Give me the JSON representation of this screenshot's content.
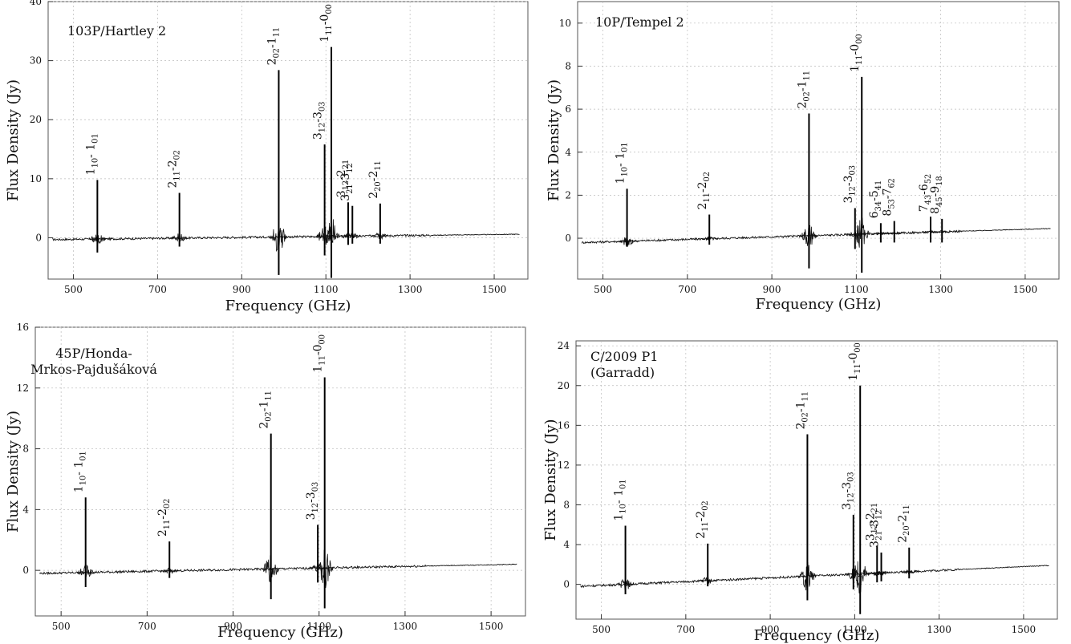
{
  "chart_data": [
    {
      "type": "line",
      "comet": "103P/Hartley 2",
      "xlabel": "Frequency (GHz)",
      "ylabel": "Flux Density (Jy)",
      "xlim": [
        440,
        1580
      ],
      "ylim": [
        -7,
        40
      ],
      "xticks": [
        500,
        700,
        900,
        1100,
        1300,
        1500
      ],
      "yticks": [
        0,
        10,
        20,
        30,
        40
      ],
      "grid": true,
      "baseline": [
        [
          450,
          -0.3
        ],
        [
          1560,
          0.6
        ]
      ],
      "lines": [
        {
          "x": 557,
          "peak": 9.8,
          "trough": -2.5,
          "label_main": "1",
          "label_sub1": "10",
          "label_mid": "- 1",
          "label_sub2": "01"
        },
        {
          "x": 752,
          "peak": 7.6,
          "trough": -1.5,
          "label_main": "2",
          "label_sub1": "11",
          "label_mid": "-2",
          "label_sub2": "02"
        },
        {
          "x": 988,
          "peak": 28.4,
          "trough": -6.3,
          "label_main": "2",
          "label_sub1": "02",
          "label_mid": "-1",
          "label_sub2": "11"
        },
        {
          "x": 1097,
          "peak": 15.8,
          "trough": -3.0,
          "label_main": "3",
          "label_sub1": "12",
          "label_mid": "-3",
          "label_sub2": "03"
        },
        {
          "x": 1113,
          "peak": 32.3,
          "trough": -6.8,
          "label_main": "1",
          "label_sub1": "11",
          "label_mid": "-0",
          "label_sub2": "00"
        },
        {
          "x": 1153,
          "peak": 6.0,
          "trough": -1.2,
          "label_main": "3",
          "label_sub1": "12",
          "label_mid": "-2",
          "label_sub2": "21"
        },
        {
          "x": 1163,
          "peak": 5.4,
          "trough": -1.0,
          "label_main": "3",
          "label_sub1": "21",
          "label_mid": "-3",
          "label_sub2": "12"
        },
        {
          "x": 1229,
          "peak": 5.8,
          "trough": -1.0,
          "label_main": "2",
          "label_sub1": "20",
          "label_mid": "-2",
          "label_sub2": "11"
        }
      ]
    },
    {
      "type": "line",
      "comet": "10P/Tempel 2",
      "xlabel": "Frequency (GHz)",
      "ylabel": "Flux Density (Jy)",
      "xlim": [
        440,
        1580
      ],
      "ylim": [
        -1.9,
        11
      ],
      "xticks": [
        500,
        700,
        900,
        1100,
        1300,
        1500
      ],
      "yticks": [
        0,
        2,
        4,
        6,
        8,
        10
      ],
      "grid": true,
      "baseline": [
        [
          450,
          -0.2
        ],
        [
          1560,
          0.45
        ]
      ],
      "lines": [
        {
          "x": 557,
          "peak": 2.3,
          "trough": -0.4,
          "label_main": "1",
          "label_sub1": "10",
          "label_mid": "- 1",
          "label_sub2": "01"
        },
        {
          "x": 752,
          "peak": 1.1,
          "trough": -0.3,
          "label_main": "2",
          "label_sub1": "11",
          "label_mid": "-2",
          "label_sub2": "02"
        },
        {
          "x": 988,
          "peak": 5.8,
          "trough": -1.4,
          "label_main": "2",
          "label_sub1": "02",
          "label_mid": "-1",
          "label_sub2": "11"
        },
        {
          "x": 1097,
          "peak": 1.4,
          "trough": -0.5,
          "label_main": "3",
          "label_sub1": "12",
          "label_mid": "-3",
          "label_sub2": "03"
        },
        {
          "x": 1113,
          "peak": 7.5,
          "trough": -1.6,
          "label_main": "1",
          "label_sub1": "11",
          "label_mid": "-0",
          "label_sub2": "00"
        },
        {
          "x": 1158,
          "peak": 0.7,
          "trough": -0.2,
          "label_main": "6",
          "label_sub1": "34",
          "label_mid": "-5",
          "label_sub2": "41"
        },
        {
          "x": 1190,
          "peak": 0.8,
          "trough": -0.2,
          "label_main": "8",
          "label_sub1": "53",
          "label_mid": "-7",
          "label_sub2": "62"
        },
        {
          "x": 1276,
          "peak": 1.0,
          "trough": -0.2,
          "label_main": "7",
          "label_sub1": "43",
          "label_mid": "-6",
          "label_sub2": "52"
        },
        {
          "x": 1303,
          "peak": 0.9,
          "trough": -0.2,
          "label_main": "8",
          "label_sub1": "45",
          "label_mid": "-9",
          "label_sub2": "18"
        }
      ]
    },
    {
      "type": "line",
      "comet": "45P/Honda-Mrkos-Pajdušáková",
      "comet_lines": [
        "45P/Honda-",
        "Mrkos-Pajdušáková"
      ],
      "xlabel": "Frequency (GHz)",
      "ylabel": "Flux Density (Jy)",
      "xlim": [
        440,
        1580
      ],
      "ylim": [
        -3,
        16
      ],
      "xticks": [
        500,
        700,
        900,
        1100,
        1300,
        1500
      ],
      "yticks": [
        0,
        4,
        8,
        12,
        16
      ],
      "grid": true,
      "baseline": [
        [
          450,
          -0.2
        ],
        [
          1560,
          0.4
        ]
      ],
      "lines": [
        {
          "x": 557,
          "peak": 4.8,
          "trough": -1.1,
          "label_main": "1",
          "label_sub1": "10",
          "label_mid": "- 1",
          "label_sub2": "01"
        },
        {
          "x": 752,
          "peak": 1.9,
          "trough": -0.5,
          "label_main": "2",
          "label_sub1": "11",
          "label_mid": "-2",
          "label_sub2": "02"
        },
        {
          "x": 988,
          "peak": 9.0,
          "trough": -1.9,
          "label_main": "2",
          "label_sub1": "02",
          "label_mid": "-1",
          "label_sub2": "11"
        },
        {
          "x": 1097,
          "peak": 3.0,
          "trough": -0.8,
          "label_main": "3",
          "label_sub1": "12",
          "label_mid": "-3",
          "label_sub2": "03"
        },
        {
          "x": 1113,
          "peak": 12.7,
          "trough": -2.5,
          "label_main": "1",
          "label_sub1": "11",
          "label_mid": "-0",
          "label_sub2": "00"
        }
      ]
    },
    {
      "type": "line",
      "comet": "C/2009 P1 (Garradd)",
      "comet_lines": [
        "C/2009 P1",
        "(Garradd)"
      ],
      "xlabel": "Frequency (GHz)",
      "ylabel": "Flux Density (Jy)",
      "xlim": [
        440,
        1580
      ],
      "ylim": [
        -3.5,
        24.5
      ],
      "xticks": [
        500,
        700,
        900,
        1100,
        1300,
        1500
      ],
      "yticks": [
        0,
        4,
        8,
        12,
        16,
        20,
        24
      ],
      "grid": true,
      "baseline": [
        [
          450,
          -0.2
        ],
        [
          1560,
          1.9
        ]
      ],
      "lines": [
        {
          "x": 557,
          "peak": 5.9,
          "trough": -1.0,
          "label_main": "1",
          "label_sub1": "10",
          "label_mid": "- 1",
          "label_sub2": "01"
        },
        {
          "x": 752,
          "peak": 4.1,
          "trough": -0.2,
          "label_main": "2",
          "label_sub1": "11",
          "label_mid": "-2",
          "label_sub2": "02"
        },
        {
          "x": 988,
          "peak": 15.1,
          "trough": -1.6,
          "label_main": "2",
          "label_sub1": "02",
          "label_mid": "-1",
          "label_sub2": "11"
        },
        {
          "x": 1097,
          "peak": 7.0,
          "trough": -0.5,
          "label_main": "3",
          "label_sub1": "12",
          "label_mid": "-3",
          "label_sub2": "03"
        },
        {
          "x": 1113,
          "peak": 20.0,
          "trough": -3.0,
          "label_main": "1",
          "label_sub1": "11",
          "label_mid": "-0",
          "label_sub2": "00"
        },
        {
          "x": 1153,
          "peak": 3.9,
          "trough": 0.2,
          "label_main": "3",
          "label_sub1": "12",
          "label_mid": "-2",
          "label_sub2": "21"
        },
        {
          "x": 1163,
          "peak": 3.2,
          "trough": 0.3,
          "label_main": "3",
          "label_sub1": "21",
          "label_mid": "-3",
          "label_sub2": "12"
        },
        {
          "x": 1229,
          "peak": 3.7,
          "trough": 0.6,
          "label_main": "2",
          "label_sub1": "20",
          "label_mid": "-2",
          "label_sub2": "11"
        }
      ]
    }
  ]
}
